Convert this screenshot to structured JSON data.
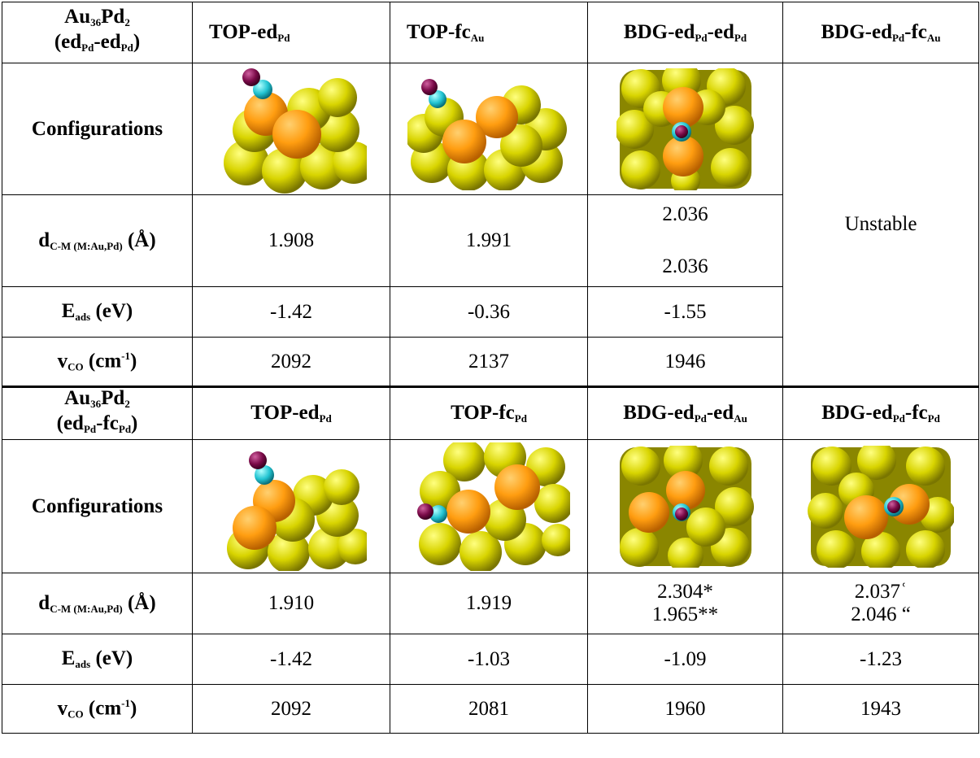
{
  "section1": {
    "corner_title": [
      "Au",
      "36",
      "Pd",
      "2"
    ],
    "corner_sub": [
      "(ed",
      "Pd",
      "-ed",
      "Pd",
      ")"
    ],
    "col1": [
      "TOP-ed",
      "Pd"
    ],
    "col2": [
      "TOP-fc",
      "Au"
    ],
    "col3": [
      "BDG-ed",
      "Pd",
      "-ed",
      "Pd"
    ],
    "col4": [
      "BDG-ed",
      "Pd",
      "-fc",
      "Au"
    ],
    "row_config": "Configurations",
    "row_d": [
      "d",
      "C-M (M:Au,Pd)",
      " (Å)"
    ],
    "row_e": [
      "E",
      "ads",
      " (eV)"
    ],
    "row_v": [
      "v",
      "CO",
      " (cm",
      "-1",
      ")"
    ],
    "d_values": [
      "1.908",
      "1.991",
      "2.036",
      "2.036"
    ],
    "unstable": "Unstable",
    "e_values": [
      "-1.42",
      "-0.36",
      "-1.55"
    ],
    "v_values": [
      "2092",
      "2137",
      "1946"
    ]
  },
  "section2": {
    "corner_title": [
      "Au",
      "36",
      "Pd",
      "2"
    ],
    "corner_sub": [
      "(ed",
      "Pd",
      "-fc",
      "Pd",
      ")"
    ],
    "col1": [
      "TOP-ed",
      "Pd"
    ],
    "col2": [
      "TOP-fc",
      "Pd"
    ],
    "col3": [
      "BDG-ed",
      "Pd",
      "-ed",
      "Au"
    ],
    "col4": [
      "BDG-ed",
      "Pd",
      "-fc",
      "Pd"
    ],
    "row_config": "Configurations",
    "row_d": [
      "d",
      "C-M (M:Au,Pd)",
      " (Å)"
    ],
    "row_e": [
      "E",
      "ads",
      " (eV)"
    ],
    "row_v": [
      "v",
      "CO",
      " (cm",
      "-1",
      ")"
    ],
    "d_values": [
      "1.910",
      "1.919",
      "2.304*",
      "1.965**",
      "2.037ʿ",
      "2.046 “"
    ],
    "e_values": [
      "-1.42",
      "-1.03",
      "-1.09",
      "-1.23"
    ],
    "v_values": [
      "2092",
      "2081",
      "1960",
      "1943"
    ]
  },
  "colors": {
    "gold": "#d8d400",
    "palladium": "#ff9d10",
    "carbon": "#22c4d2",
    "oxygen": "#7a0a48"
  },
  "images": [
    "s1-top-edpd",
    "s1-top-fcau",
    "s1-bdg-edpd-edpd",
    "s2-top-edpd",
    "s2-top-fcpd",
    "s2-bdg-edpd-edau",
    "s2-bdg-edpd-fcpd"
  ]
}
